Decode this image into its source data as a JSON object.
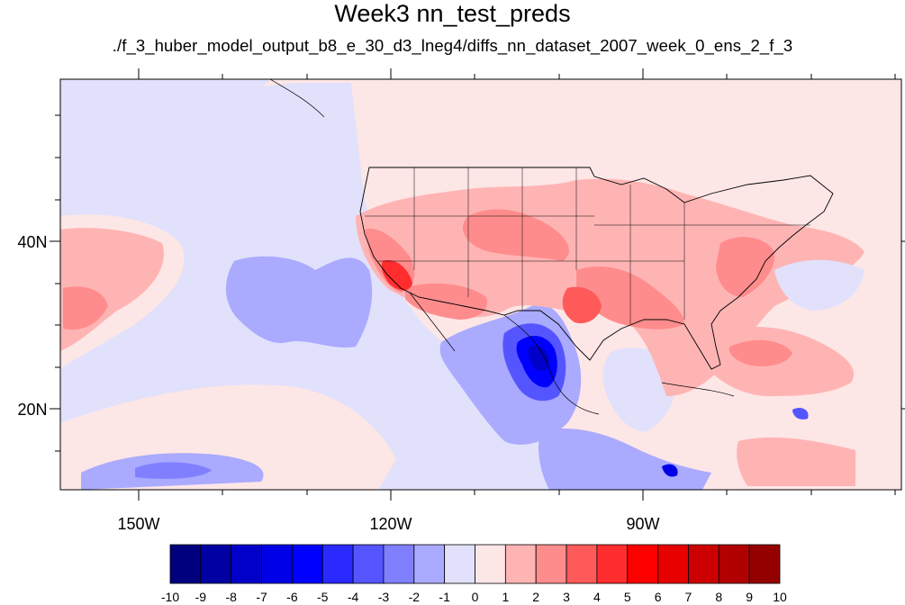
{
  "title": "Week3 nn_test_preds",
  "subtitle": "./f_3_huber_model_output_b8_e_30_d3_lneg4/diffs_nn_dataset_2007_week_0_ens_2_f_3",
  "map": {
    "lon_range": [
      -161,
      -58
    ],
    "lat_range": [
      10,
      59
    ],
    "lon_ticks": [
      "150W",
      "120W",
      "90W"
    ],
    "lat_ticks": [
      "40N",
      "20N"
    ]
  },
  "colorbar": {
    "labels": [
      "-10",
      "-9",
      "-8",
      "-7",
      "-6",
      "-5",
      "-4",
      "-3",
      "-2",
      "-1",
      "0",
      "1",
      "2",
      "3",
      "4",
      "5",
      "6",
      "7",
      "8",
      "9",
      "10"
    ],
    "colors": [
      "#00007f",
      "#0000a3",
      "#0000c8",
      "#0000e6",
      "#0000ff",
      "#2a2aff",
      "#5555ff",
      "#8080ff",
      "#aaaaff",
      "#e1e1fb",
      "#fde6e6",
      "#ffb4b4",
      "#ff8c8c",
      "#ff5a5a",
      "#ff2d2d",
      "#ff0000",
      "#e60000",
      "#cc0000",
      "#b00000",
      "#940000"
    ]
  }
}
